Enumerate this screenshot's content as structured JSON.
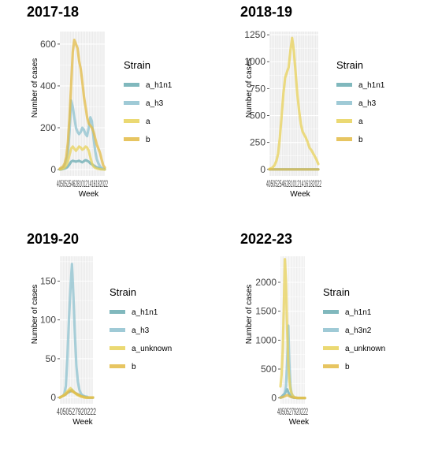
{
  "chart_data": [
    {
      "type": "line",
      "title": "2017-18",
      "xlabel": "Week",
      "ylabel": "Number of cases",
      "yticks": [
        0,
        200,
        400,
        600
      ],
      "ylim": [
        -30,
        660
      ],
      "x_tick_text": "4050525462810121416182022",
      "legend_title": "Strain",
      "x": [
        1,
        2,
        3,
        4,
        5,
        6,
        7,
        8,
        9,
        10,
        11,
        12,
        13,
        14,
        15,
        16,
        17,
        18,
        19,
        20,
        21,
        22,
        23,
        24,
        25,
        26,
        27,
        28,
        29
      ],
      "series": [
        {
          "name": "a_h1n1",
          "color": "#6aabb2",
          "values": [
            0,
            1,
            3,
            5,
            8,
            15,
            25,
            38,
            42,
            40,
            38,
            40,
            42,
            38,
            35,
            40,
            45,
            42,
            38,
            30,
            25,
            20,
            15,
            10,
            8,
            5,
            3,
            2,
            1
          ]
        },
        {
          "name": "a_h3",
          "color": "#8ec1cf",
          "values": [
            2,
            5,
            10,
            20,
            40,
            80,
            180,
            330,
            300,
            250,
            200,
            180,
            170,
            180,
            200,
            190,
            170,
            160,
            200,
            250,
            230,
            150,
            90,
            50,
            30,
            15,
            8,
            4,
            2
          ]
        },
        {
          "name": "a",
          "color": "#e8d25a",
          "values": [
            1,
            2,
            5,
            10,
            20,
            40,
            70,
            100,
            110,
            100,
            90,
            100,
            110,
            105,
            95,
            100,
            110,
            105,
            90,
            60,
            30,
            15,
            8,
            5,
            3,
            2,
            1,
            1,
            0
          ]
        },
        {
          "name": "b",
          "color": "#e3bb45",
          "values": [
            5,
            10,
            15,
            30,
            60,
            130,
            250,
            400,
            560,
            620,
            600,
            580,
            520,
            480,
            420,
            350,
            300,
            250,
            220,
            210,
            200,
            180,
            150,
            120,
            100,
            80,
            50,
            20,
            10
          ]
        }
      ]
    },
    {
      "type": "line",
      "title": "2018-19",
      "xlabel": "Week",
      "ylabel": "Number of cases",
      "yticks": [
        0,
        250,
        500,
        750,
        1000,
        1250
      ],
      "ylim": [
        -60,
        1280
      ],
      "x_tick_text": "4050525462810121416182022",
      "legend_title": "Strain",
      "x": [
        1,
        2,
        3,
        4,
        5,
        6,
        7,
        8,
        9,
        10,
        11,
        12,
        13,
        14,
        15,
        16,
        17,
        18,
        19,
        20,
        21,
        22,
        23,
        24,
        25,
        26,
        27,
        28,
        29
      ],
      "series": [
        {
          "name": "a_h1n1",
          "color": "#6aabb2",
          "values": [
            0,
            0,
            0,
            0,
            0,
            0,
            0,
            0,
            0,
            0,
            0,
            0,
            0,
            0,
            0,
            0,
            0,
            0,
            0,
            0,
            0,
            0,
            0,
            0,
            0,
            0,
            0,
            0,
            0
          ]
        },
        {
          "name": "a_h3",
          "color": "#8ec1cf",
          "values": [
            0,
            0,
            0,
            0,
            0,
            0,
            0,
            0,
            0,
            0,
            0,
            0,
            0,
            0,
            0,
            0,
            0,
            0,
            0,
            0,
            0,
            0,
            0,
            0,
            0,
            0,
            0,
            0,
            0
          ]
        },
        {
          "name": "a",
          "color": "#e8d25a",
          "values": [
            5,
            10,
            20,
            40,
            80,
            150,
            300,
            500,
            700,
            850,
            900,
            950,
            1100,
            1220,
            1100,
            900,
            700,
            550,
            420,
            350,
            320,
            290,
            250,
            200,
            180,
            150,
            120,
            90,
            50
          ]
        },
        {
          "name": "b",
          "color": "#e3bb45",
          "values": [
            0,
            0,
            0,
            0,
            0,
            0,
            0,
            0,
            0,
            0,
            0,
            0,
            0,
            0,
            0,
            0,
            0,
            0,
            0,
            0,
            0,
            0,
            0,
            0,
            0,
            0,
            0,
            0,
            0
          ]
        }
      ]
    },
    {
      "type": "line",
      "title": "2019-20",
      "xlabel": "Week",
      "ylabel": "Number of cases",
      "yticks": [
        0,
        50,
        100,
        150
      ],
      "ylim": [
        -8,
        182
      ],
      "x_tick_text": "4050527920222",
      "legend_title": "Strain",
      "x": [
        1,
        2,
        3,
        4,
        5,
        6,
        7,
        8,
        9,
        10,
        11,
        12,
        13,
        14,
        15,
        16,
        17,
        18,
        19,
        20,
        21,
        22,
        23
      ],
      "series": [
        {
          "name": "a_h1n1",
          "color": "#6aabb2",
          "values": [
            0,
            1,
            2,
            3,
            5,
            6,
            7,
            8,
            10,
            8,
            6,
            5,
            4,
            3,
            2,
            2,
            1,
            1,
            0,
            0,
            0,
            0,
            0
          ]
        },
        {
          "name": "a_h3",
          "color": "#8ec1cf",
          "values": [
            0,
            1,
            2,
            5,
            15,
            50,
            100,
            140,
            172,
            130,
            80,
            40,
            20,
            10,
            5,
            3,
            2,
            1,
            1,
            0,
            0,
            0,
            0
          ]
        },
        {
          "name": "a_unknown",
          "color": "#e8d25a",
          "values": [
            0,
            1,
            2,
            4,
            6,
            8,
            10,
            12,
            10,
            8,
            6,
            4,
            3,
            2,
            1,
            1,
            0,
            0,
            0,
            0,
            0,
            0,
            0
          ]
        },
        {
          "name": "b",
          "color": "#e3bb45",
          "values": [
            0,
            1,
            2,
            3,
            4,
            6,
            8,
            9,
            8,
            7,
            6,
            5,
            4,
            3,
            2,
            1,
            1,
            0,
            0,
            0,
            0,
            0,
            0
          ]
        }
      ]
    },
    {
      "type": "line",
      "title": "2022-23",
      "xlabel": "Week",
      "ylabel": "Number of cases",
      "yticks": [
        0,
        500,
        1000,
        1500,
        2000
      ],
      "ylim": [
        -100,
        2450
      ],
      "x_tick_text": "4050527920222",
      "legend_title": "Strain",
      "x": [
        1,
        2,
        3,
        4,
        5,
        6,
        7,
        8,
        9,
        10,
        11,
        12,
        13,
        14,
        15,
        16,
        17,
        18,
        19,
        20,
        21,
        22,
        23
      ],
      "series": [
        {
          "name": "a_h1n1",
          "color": "#6aabb2",
          "values": [
            10,
            20,
            40,
            60,
            80,
            120,
            150,
            100,
            60,
            30,
            20,
            10,
            5,
            3,
            2,
            1,
            0,
            0,
            0,
            0,
            0,
            0,
            0
          ]
        },
        {
          "name": "a_h3n2",
          "color": "#8ec1cf",
          "values": [
            5,
            10,
            20,
            40,
            80,
            200,
            600,
            1250,
            600,
            200,
            80,
            40,
            20,
            10,
            5,
            2,
            1,
            0,
            0,
            0,
            0,
            0,
            0
          ]
        },
        {
          "name": "a_unknown",
          "color": "#e8d25a",
          "values": [
            200,
            400,
            800,
            1500,
            2400,
            2000,
            1200,
            600,
            300,
            150,
            80,
            40,
            20,
            10,
            5,
            2,
            1,
            0,
            0,
            0,
            0,
            0,
            0
          ]
        },
        {
          "name": "b",
          "color": "#e3bb45",
          "values": [
            5,
            10,
            15,
            20,
            30,
            40,
            50,
            40,
            30,
            20,
            15,
            10,
            8,
            5,
            3,
            2,
            1,
            0,
            0,
            0,
            0,
            0,
            0
          ]
        }
      ]
    }
  ]
}
